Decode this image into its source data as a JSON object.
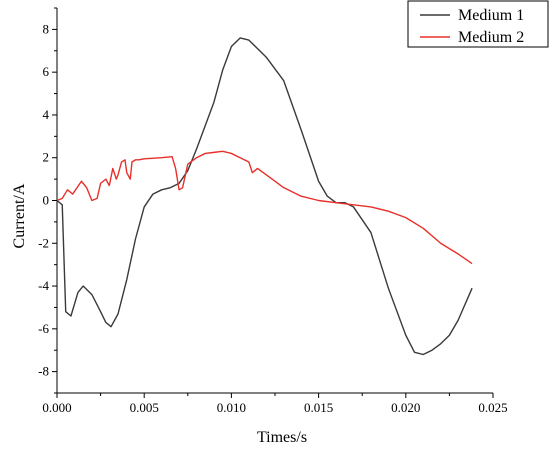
{
  "chart_data": {
    "type": "line",
    "xlabel": "Times/s",
    "ylabel": "Current/A",
    "xlim": [
      0.0,
      0.025
    ],
    "ylim": [
      -9,
      9
    ],
    "xticks": [
      "0.000",
      "0.005",
      "0.010",
      "0.015",
      "0.020",
      "0.025"
    ],
    "yticks": [
      "-8",
      "-6",
      "-4",
      "-2",
      "0",
      "2",
      "4",
      "6",
      "8"
    ],
    "grid": false,
    "legend_position": "top-right",
    "series": [
      {
        "name": "Medium 1",
        "color": "#3a3a3a",
        "x": [
          0.0,
          0.0003,
          0.0005,
          0.0008,
          0.0012,
          0.0015,
          0.002,
          0.0025,
          0.0028,
          0.0031,
          0.0035,
          0.004,
          0.0045,
          0.005,
          0.0055,
          0.006,
          0.0065,
          0.007,
          0.0075,
          0.008,
          0.009,
          0.0095,
          0.01,
          0.0105,
          0.011,
          0.0115,
          0.012,
          0.013,
          0.014,
          0.015,
          0.0155,
          0.016,
          0.0165,
          0.017,
          0.018,
          0.019,
          0.02,
          0.0205,
          0.021,
          0.0215,
          0.022,
          0.0225,
          0.023,
          0.0238
        ],
        "y": [
          0.0,
          -0.2,
          -5.2,
          -5.4,
          -4.3,
          -4.0,
          -4.4,
          -5.2,
          -5.7,
          -5.9,
          -5.3,
          -3.7,
          -1.8,
          -0.3,
          0.3,
          0.5,
          0.6,
          0.8,
          1.4,
          2.4,
          4.6,
          6.1,
          7.2,
          7.6,
          7.5,
          7.1,
          6.7,
          5.6,
          3.3,
          0.9,
          0.2,
          -0.1,
          -0.1,
          -0.3,
          -1.5,
          -4.1,
          -6.3,
          -7.1,
          -7.2,
          -7.0,
          -6.7,
          -6.3,
          -5.6,
          -4.1
        ]
      },
      {
        "name": "Medium 2",
        "color": "#e8302a",
        "x": [
          0.0,
          0.0003,
          0.0006,
          0.0009,
          0.0014,
          0.0017,
          0.002,
          0.0023,
          0.0025,
          0.0028,
          0.003,
          0.0032,
          0.0034,
          0.0035,
          0.0037,
          0.0039,
          0.004,
          0.0042,
          0.0043,
          0.0045,
          0.0047,
          0.005,
          0.006,
          0.0066,
          0.0068,
          0.007,
          0.0072,
          0.0075,
          0.008,
          0.0085,
          0.009,
          0.0095,
          0.01,
          0.0105,
          0.011,
          0.0112,
          0.0115,
          0.012,
          0.013,
          0.014,
          0.015,
          0.016,
          0.017,
          0.018,
          0.019,
          0.02,
          0.021,
          0.022,
          0.023,
          0.0238
        ],
        "y": [
          0.0,
          0.1,
          0.5,
          0.3,
          0.9,
          0.6,
          0.0,
          0.1,
          0.8,
          1.0,
          0.7,
          1.5,
          1.0,
          1.2,
          1.8,
          1.9,
          1.3,
          1.0,
          1.8,
          1.9,
          1.9,
          1.95,
          2.0,
          2.05,
          1.5,
          0.5,
          0.6,
          1.7,
          2.0,
          2.2,
          2.25,
          2.3,
          2.2,
          2.0,
          1.8,
          1.3,
          1.5,
          1.2,
          0.6,
          0.2,
          0.0,
          -0.1,
          -0.2,
          -0.3,
          -0.5,
          -0.8,
          -1.3,
          -2.0,
          -2.5,
          -2.95
        ]
      }
    ]
  }
}
